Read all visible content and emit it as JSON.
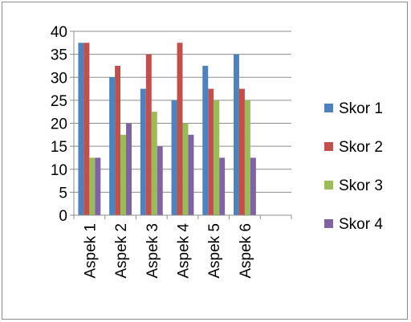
{
  "chart_data": {
    "type": "bar",
    "title": "",
    "xlabel": "",
    "ylabel": "",
    "categories": [
      "Aspek 1",
      "Aspek 2",
      "Aspek 3",
      "Aspek 4",
      "Aspek 5",
      "Aspek 6",
      ""
    ],
    "ylim": [
      0,
      40
    ],
    "yticks": [
      "0",
      "5",
      "10",
      "15",
      "20",
      "25",
      "30",
      "35",
      "40"
    ],
    "grid": true,
    "legend_position": "right",
    "series": [
      {
        "name": "Skor 1",
        "color": "#4f81bd",
        "values": [
          37.5,
          30,
          27.5,
          25,
          32.5,
          35,
          null
        ]
      },
      {
        "name": "Skor 2",
        "color": "#c0504d",
        "values": [
          37.5,
          32.5,
          35,
          37.5,
          27.5,
          27.5,
          null
        ]
      },
      {
        "name": "Skor 3",
        "color": "#9bbb59",
        "values": [
          12.5,
          17.5,
          22.5,
          20,
          25,
          25,
          null
        ]
      },
      {
        "name": "Skor 4",
        "color": "#8064a2",
        "values": [
          12.5,
          20,
          15,
          17.5,
          12.5,
          12.5,
          null
        ]
      }
    ]
  }
}
